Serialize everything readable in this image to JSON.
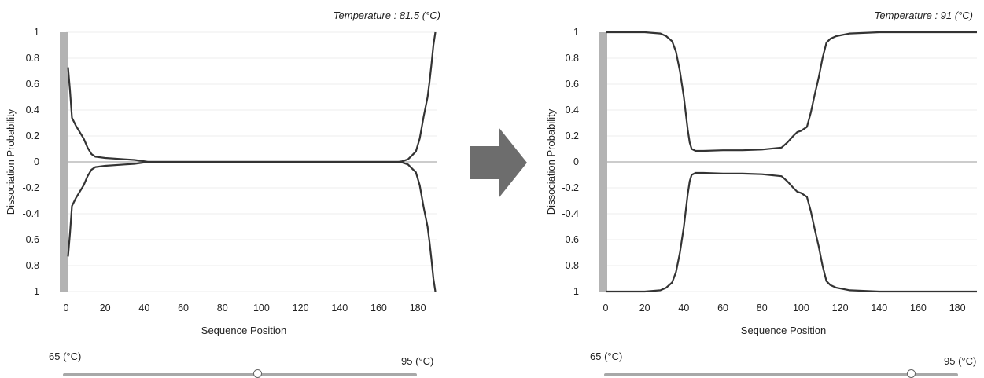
{
  "colors": {
    "curve": "#333333",
    "zero_line": "#999999",
    "grid": "#ececec",
    "side_bar": "#b3b3b3",
    "arrow": "#6d6d6d"
  },
  "arrow_icon": "right-arrow-icon",
  "panels": [
    {
      "temperature_title": "Temperature : 81.5 (°C)",
      "slider": {
        "min_label": "65 (°C)",
        "max_label": "95 (°C)",
        "value_fraction": 0.55
      }
    },
    {
      "temperature_title": "Temperature : 91 (°C)",
      "slider": {
        "min_label": "65 (°C)",
        "max_label": "95 (°C)",
        "value_fraction": 0.867
      }
    }
  ],
  "chart_data": [
    {
      "type": "line",
      "title": "Temperature : 81.5 (°C)",
      "xlabel": "Sequence Position",
      "ylabel": "Dissociation Probability",
      "xlim": [
        0,
        190
      ],
      "ylim": [
        -1,
        1
      ],
      "x_ticks": [
        "0",
        "20",
        "40",
        "60",
        "80",
        "100",
        "120",
        "140",
        "160",
        "180"
      ],
      "y_ticks": [
        "1",
        "0.8",
        "0.6",
        "0.4",
        "0.2",
        "0",
        "-0.2",
        "-0.4",
        "-0.6",
        "-0.8",
        "-1"
      ],
      "grid": true,
      "mirrored": true,
      "series": [
        {
          "x": [
            1,
            2,
            3,
            5,
            7,
            9,
            11,
            13,
            15,
            20,
            30,
            35,
            40,
            42,
            45,
            60,
            100,
            140,
            165,
            170,
            172,
            175,
            177,
            179,
            181,
            183,
            185,
            186,
            187,
            188,
            189
          ],
          "y": [
            0.73,
            0.55,
            0.34,
            0.28,
            0.23,
            0.18,
            0.11,
            0.06,
            0.04,
            0.03,
            0.02,
            0.015,
            0.005,
            0.0,
            0.0,
            0.0,
            0.0,
            0.0,
            0.0,
            0.0,
            0.005,
            0.02,
            0.05,
            0.08,
            0.18,
            0.35,
            0.5,
            0.62,
            0.75,
            0.9,
            1.0
          ]
        }
      ]
    },
    {
      "type": "line",
      "title": "Temperature : 91 (°C)",
      "xlabel": "Sequence Position",
      "ylabel": "Dissociation Probability",
      "xlim": [
        0,
        190
      ],
      "ylim": [
        -1,
        1
      ],
      "x_ticks": [
        "0",
        "20",
        "40",
        "60",
        "80",
        "100",
        "120",
        "140",
        "160",
        "180"
      ],
      "y_ticks": [
        "1",
        "0.8",
        "0.6",
        "0.4",
        "0.2",
        "0",
        "-0.2",
        "-0.4",
        "-0.6",
        "-0.8",
        "-1"
      ],
      "grid": true,
      "mirrored": true,
      "series": [
        {
          "x": [
            0,
            20,
            28,
            31,
            34,
            36,
            38,
            40,
            42,
            43,
            44,
            46,
            50,
            60,
            70,
            80,
            90,
            93,
            96,
            98,
            100,
            103,
            105,
            107,
            109,
            111,
            113,
            115,
            118,
            125,
            140,
            160,
            190
          ],
          "y": [
            1.0,
            1.0,
            0.99,
            0.97,
            0.93,
            0.85,
            0.7,
            0.5,
            0.25,
            0.15,
            0.1,
            0.085,
            0.085,
            0.09,
            0.09,
            0.095,
            0.11,
            0.15,
            0.2,
            0.23,
            0.24,
            0.27,
            0.38,
            0.52,
            0.65,
            0.8,
            0.92,
            0.95,
            0.97,
            0.99,
            1.0,
            1.0,
            1.0
          ]
        }
      ]
    }
  ]
}
